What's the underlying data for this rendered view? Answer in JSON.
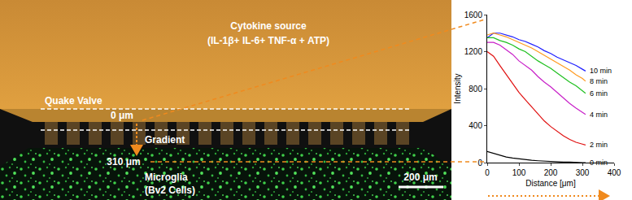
{
  "chart_data": {
    "type": "line",
    "x_label": "Distance [μm]",
    "y_label": "Intensity",
    "xlim": [
      0,
      400
    ],
    "xticks": [
      0,
      100,
      200,
      300,
      400
    ],
    "ylim": [
      0,
      1600
    ],
    "yticks": [
      0,
      400,
      800,
      1200,
      1600
    ],
    "grid": false,
    "x": [
      0,
      20,
      40,
      60,
      80,
      100,
      120,
      140,
      160,
      180,
      200,
      220,
      240,
      260,
      280,
      300,
      310
    ],
    "series": [
      {
        "name": "10 min",
        "color": "#1f1fff",
        "values": [
          1350,
          1400,
          1400,
          1380,
          1360,
          1330,
          1310,
          1280,
          1250,
          1210,
          1180,
          1140,
          1110,
          1080,
          1050,
          1010,
          990
        ]
      },
      {
        "name": "8 min",
        "color": "#ff9a1f",
        "values": [
          1380,
          1400,
          1380,
          1360,
          1330,
          1300,
          1270,
          1240,
          1200,
          1160,
          1120,
          1080,
          1040,
          1000,
          950,
          910,
          880
        ]
      },
      {
        "name": "6 min",
        "color": "#1fc01f",
        "values": [
          1350,
          1350,
          1320,
          1300,
          1270,
          1230,
          1200,
          1150,
          1100,
          1060,
          1020,
          970,
          920,
          870,
          830,
          780,
          750
        ]
      },
      {
        "name": "4 min",
        "color": "#c81fc8",
        "values": [
          1300,
          1300,
          1270,
          1220,
          1170,
          1100,
          1050,
          1000,
          930,
          870,
          820,
          760,
          700,
          640,
          590,
          540,
          520
        ]
      },
      {
        "name": "2 min",
        "color": "#e01010",
        "values": [
          1200,
          1150,
          1050,
          950,
          850,
          760,
          680,
          600,
          520,
          450,
          390,
          340,
          290,
          250,
          220,
          200,
          190
        ]
      },
      {
        "name": "0 min",
        "color": "#000000",
        "values": [
          120,
          100,
          80,
          60,
          50,
          40,
          30,
          25,
          20,
          15,
          10,
          10,
          5,
          5,
          0,
          0,
          0
        ]
      }
    ]
  },
  "image_panel": {
    "source_label": "Cytokine source",
    "source_contents": "(IL-1β+ IL-6+ TNF-α + ATP)",
    "valve_label": "Quake Valve",
    "gradient_start": "0 μm",
    "gradient_label": "Gradient",
    "gradient_end": "310 μm",
    "cells_label": "Microglia",
    "cells_name": "(Bv2 Cells)",
    "scale_bar": "200 μm"
  }
}
